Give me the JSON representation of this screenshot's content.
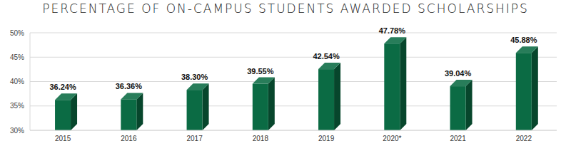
{
  "chart_data": {
    "type": "bar",
    "title": "PERCENTAGE OF ON-CAMPUS STUDENTS AWARDED SCHOLARSHIPS",
    "categories": [
      "2015",
      "2016",
      "2017",
      "2018",
      "2019",
      "2020*",
      "2021",
      "2022"
    ],
    "values": [
      36.24,
      36.36,
      38.3,
      39.55,
      42.54,
      47.78,
      39.04,
      45.88
    ],
    "value_labels": [
      "36.24%",
      "36.36%",
      "38.30%",
      "39.55%",
      "42.54%",
      "47.78%",
      "39.04%",
      "45.88%"
    ],
    "color": "#0b6b44",
    "ylim": [
      30,
      50
    ],
    "yticks": [
      {
        "value": 30,
        "label": "30%"
      },
      {
        "value": 35,
        "label": "35%"
      },
      {
        "value": 40,
        "label": "40%"
      },
      {
        "value": 45,
        "label": "45%"
      },
      {
        "value": 50,
        "label": "50%"
      }
    ],
    "grid": true,
    "data_labels": true
  }
}
